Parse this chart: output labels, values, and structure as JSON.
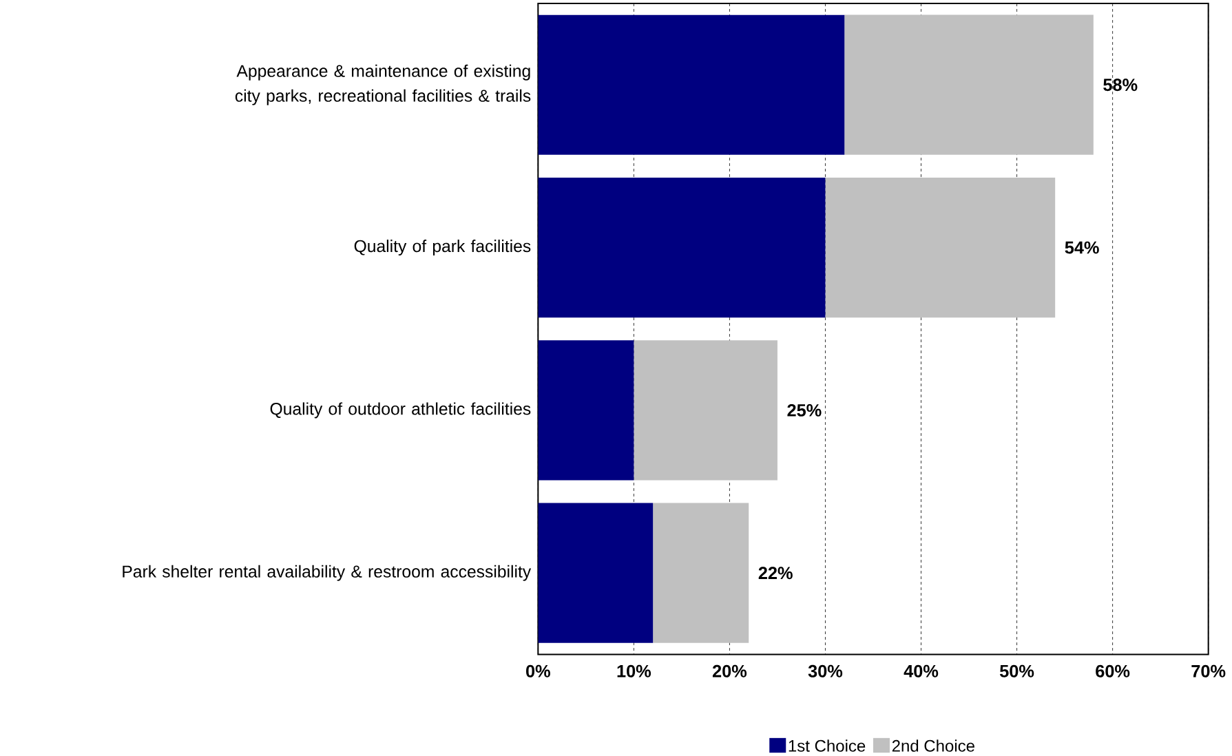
{
  "chart_data": {
    "type": "bar",
    "orientation": "horizontal",
    "stacked": true,
    "categories": [
      "Appearance & maintenance of existing city parks, recreational facilities & trails",
      "Quality of park facilities",
      "Quality of outdoor athletic facilities",
      "Park shelter rental availability & restroom accessibility"
    ],
    "series": [
      {
        "name": "1st Choice",
        "color": "#000080",
        "values": [
          32,
          30,
          10,
          12
        ]
      },
      {
        "name": "2nd Choice",
        "color": "#c0c0c0",
        "values": [
          26,
          24,
          15,
          10
        ]
      }
    ],
    "totals": [
      "58%",
      "54%",
      "25%",
      "22%"
    ],
    "xlim": [
      0,
      70
    ],
    "xticks": [
      {
        "value": 0,
        "label": "0%"
      },
      {
        "value": 10,
        "label": "10%"
      },
      {
        "value": 20,
        "label": "20%"
      },
      {
        "value": 30,
        "label": "30%"
      },
      {
        "value": 40,
        "label": "40%"
      },
      {
        "value": 50,
        "label": "50%"
      },
      {
        "value": 60,
        "label": "60%"
      },
      {
        "value": 70,
        "label": "70%"
      }
    ],
    "grid": "x",
    "legend": "bottom"
  }
}
